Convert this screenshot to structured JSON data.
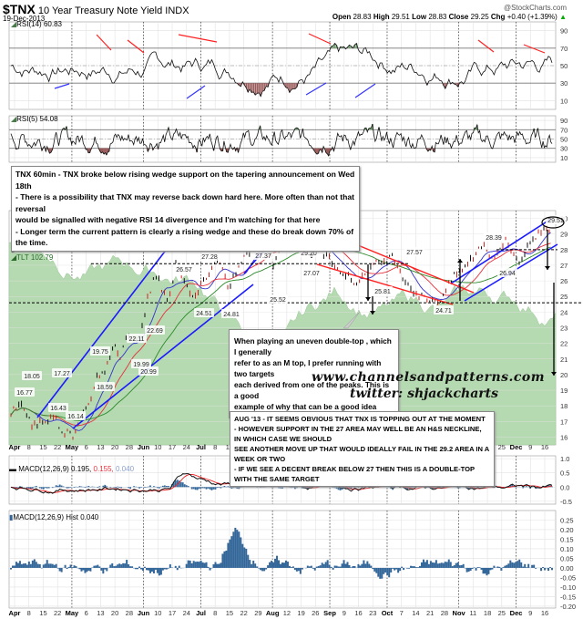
{
  "header": {
    "symbol": "$TNX",
    "name": "10 Year Treasury Note Yield INDX",
    "date": "19-Dec-2013",
    "copyright": "@StockCharts.com",
    "ohlc": {
      "open_label": "Open",
      "open": "28.83",
      "high_label": "High",
      "high": "29.51",
      "low_label": "Low",
      "low": "28.83",
      "close_label": "Close",
      "close": "29.25",
      "chg_label": "Chg",
      "chg": "+0.40 (+1.39%)"
    }
  },
  "legends": {
    "rsi14": "RSI(14) 60.83",
    "rsi5": "RSI(5) 54.08",
    "price": "$TNX (60 min) 29.25",
    "ma50": "MA(50) 28.71",
    "ma100": "MA(100) 28.47",
    "ma200": "MA(200) 27.87",
    "volume": "Volume undef",
    "tlt": "TLT 102.79",
    "macd_prefix": "MACD(12,26,9) 0.195,",
    "macd_signal": "0.155,",
    "macd_hist": "0.040",
    "hist": "MACD(12,26,9) Hist 0.040"
  },
  "annotations": {
    "note1": [
      "TNX 60min - TNX broke below rising wedge support on the tapering announcement on Wed 18th",
      "- There is a possibility that TNX may reverse back down hard here. More often than not that reversal",
      "would be signalled with negative RSI 14 divergence and I'm watching for that here",
      "- Longer term the current pattern is clearly a rising wedge and these do break down 70% of the time."
    ],
    "note2": [
      "When playing an uneven double-top , which I generally",
      "refer to as an M top, I prefer running with two targets",
      "each derived from one of the peaks. This is a good",
      "example of why that can be a good idea"
    ],
    "note3": [
      "AUG '13 - IT SEEMS OBVIOUS THAT TNX IS TOPPING OUT AT THE MOMENT",
      "- HOWEVER SUPPORT IN THE 27 AREA MAY WELL BE AN H&S NECKLINE, IN WHICH CASE WE SHOULD",
      "SEE ANOTHER MOVE UP THAT WOULD IDEALLY FAIL IN THE 29.2 AREA IN A WEEK OR TWO",
      "- IF WE SEE A DECENT BREAK BELOW 27 THEN THIS IS A DOUBLE-TOP WITH THE SAME TARGET"
    ],
    "watermark1": "www.channelsandpatterns.com",
    "watermark2": "twitter: shjackcharts"
  },
  "colors": {
    "ma50": "#3333cc",
    "ma100": "#e8303a",
    "ma200": "#2a8a2a",
    "tlt_area": "#b5d9b0",
    "channel": "#1a1aff",
    "down_channel": "#ff2020",
    "macd_hist": "#336699",
    "rsi_over": "#6e9c6a",
    "rsi_under": "#9a5a5a"
  },
  "chart_data": [
    {
      "type": "line",
      "title": "RSI(14)",
      "value": 60.83,
      "ylim": [
        0,
        100
      ],
      "yticks": [
        90,
        70,
        50,
        30,
        10
      ],
      "reference_lines": [
        70,
        50,
        30
      ]
    },
    {
      "type": "line",
      "title": "RSI(5)",
      "value": 54.08,
      "ylim": [
        0,
        100
      ],
      "yticks": [
        90,
        70,
        50,
        30,
        10
      ]
    },
    {
      "type": "line",
      "title": "$TNX (60 min) 10 Year Treasury Note Yield",
      "ylim": [
        15.5,
        30.5
      ],
      "yticks": [
        30,
        29,
        28,
        27,
        26,
        25,
        24,
        23,
        22,
        21,
        20,
        19,
        18,
        17,
        16
      ],
      "x_tick_labels": [
        "Apr",
        "8",
        "15",
        "22",
        "May",
        "6",
        "13",
        "20",
        "28",
        "Jun",
        "10",
        "17",
        "24",
        "Jul",
        "8",
        "15",
        "22",
        "29",
        "Aug",
        "12",
        "19",
        "26",
        "Sep",
        "9",
        "16",
        "23",
        "Oct",
        "7",
        "14",
        "21",
        "28",
        "Nov",
        "11",
        "18",
        "25",
        "Dec",
        "9",
        "16"
      ],
      "last": 29.25,
      "series": [
        {
          "name": "MA(50)",
          "last": 28.71
        },
        {
          "name": "MA(100)",
          "last": 28.47
        },
        {
          "name": "MA(200)",
          "last": 27.87
        },
        {
          "name": "TLT",
          "last": 102.79
        }
      ],
      "price_labels": [
        {
          "x_label": "Apr 15",
          "value": 16.77
        },
        {
          "x_label": "Apr 12",
          "value": 18.05
        },
        {
          "x_label": "Apr 29",
          "value": 17.27
        },
        {
          "x_label": "May 1",
          "value": 16.43
        },
        {
          "x_label": "May 3",
          "value": 16.14
        },
        {
          "x_label": "May 13",
          "value": 18.59
        },
        {
          "x_label": "May 13",
          "value": 19.75
        },
        {
          "x_label": "May 28",
          "value": 19.99
        },
        {
          "x_label": "Jun 3",
          "value": 22.11
        },
        {
          "x_label": "Jun 5",
          "value": 20.99
        },
        {
          "x_label": "Jun 10",
          "value": 22.69
        },
        {
          "x_label": "Jun 24",
          "value": 26.57
        },
        {
          "x_label": "Jun 28",
          "value": 24.51
        },
        {
          "x_label": "Jul 5",
          "value": 27.28
        },
        {
          "x_label": "Jul 15",
          "value": 24.81
        },
        {
          "x_label": "Jul 22",
          "value": 27.37
        },
        {
          "x_label": "Jul 29",
          "value": 25.52
        },
        {
          "x_label": "Aug 26",
          "value": 29.2
        },
        {
          "x_label": "Aug 28",
          "value": 27.07
        },
        {
          "x_label": "Sep 5",
          "value": 29.84
        },
        {
          "x_label": "Oct 1",
          "value": 25.81
        },
        {
          "x_label": "Oct 21",
          "value": 27.57
        },
        {
          "x_label": "Oct 30",
          "value": 24.71
        },
        {
          "x_label": "Nov 20",
          "value": 28.39
        },
        {
          "x_label": "Nov 29",
          "value": 26.94
        },
        {
          "x_label": "Dec 18",
          "value": 29.51
        }
      ],
      "horizontal_levels": [
        24.6,
        27.1,
        28.0
      ],
      "targets": [
        24.6,
        20.0
      ]
    },
    {
      "type": "line",
      "title": "MACD(12,26,9)",
      "values": {
        "macd": 0.195,
        "signal": 0.155,
        "hist": 0.04
      },
      "ylim": [
        -0.6,
        1.1
      ],
      "yticks": [
        1.0,
        0.5,
        0.0,
        -0.5
      ]
    },
    {
      "type": "bar",
      "title": "MACD(12,26,9) Hist",
      "value": 0.04,
      "ylim": [
        -0.21,
        0.3
      ],
      "yticks": [
        0.25,
        0.2,
        0.15,
        0.1,
        0.05,
        0.0,
        -0.05,
        -0.1,
        -0.15,
        -0.2
      ]
    }
  ]
}
